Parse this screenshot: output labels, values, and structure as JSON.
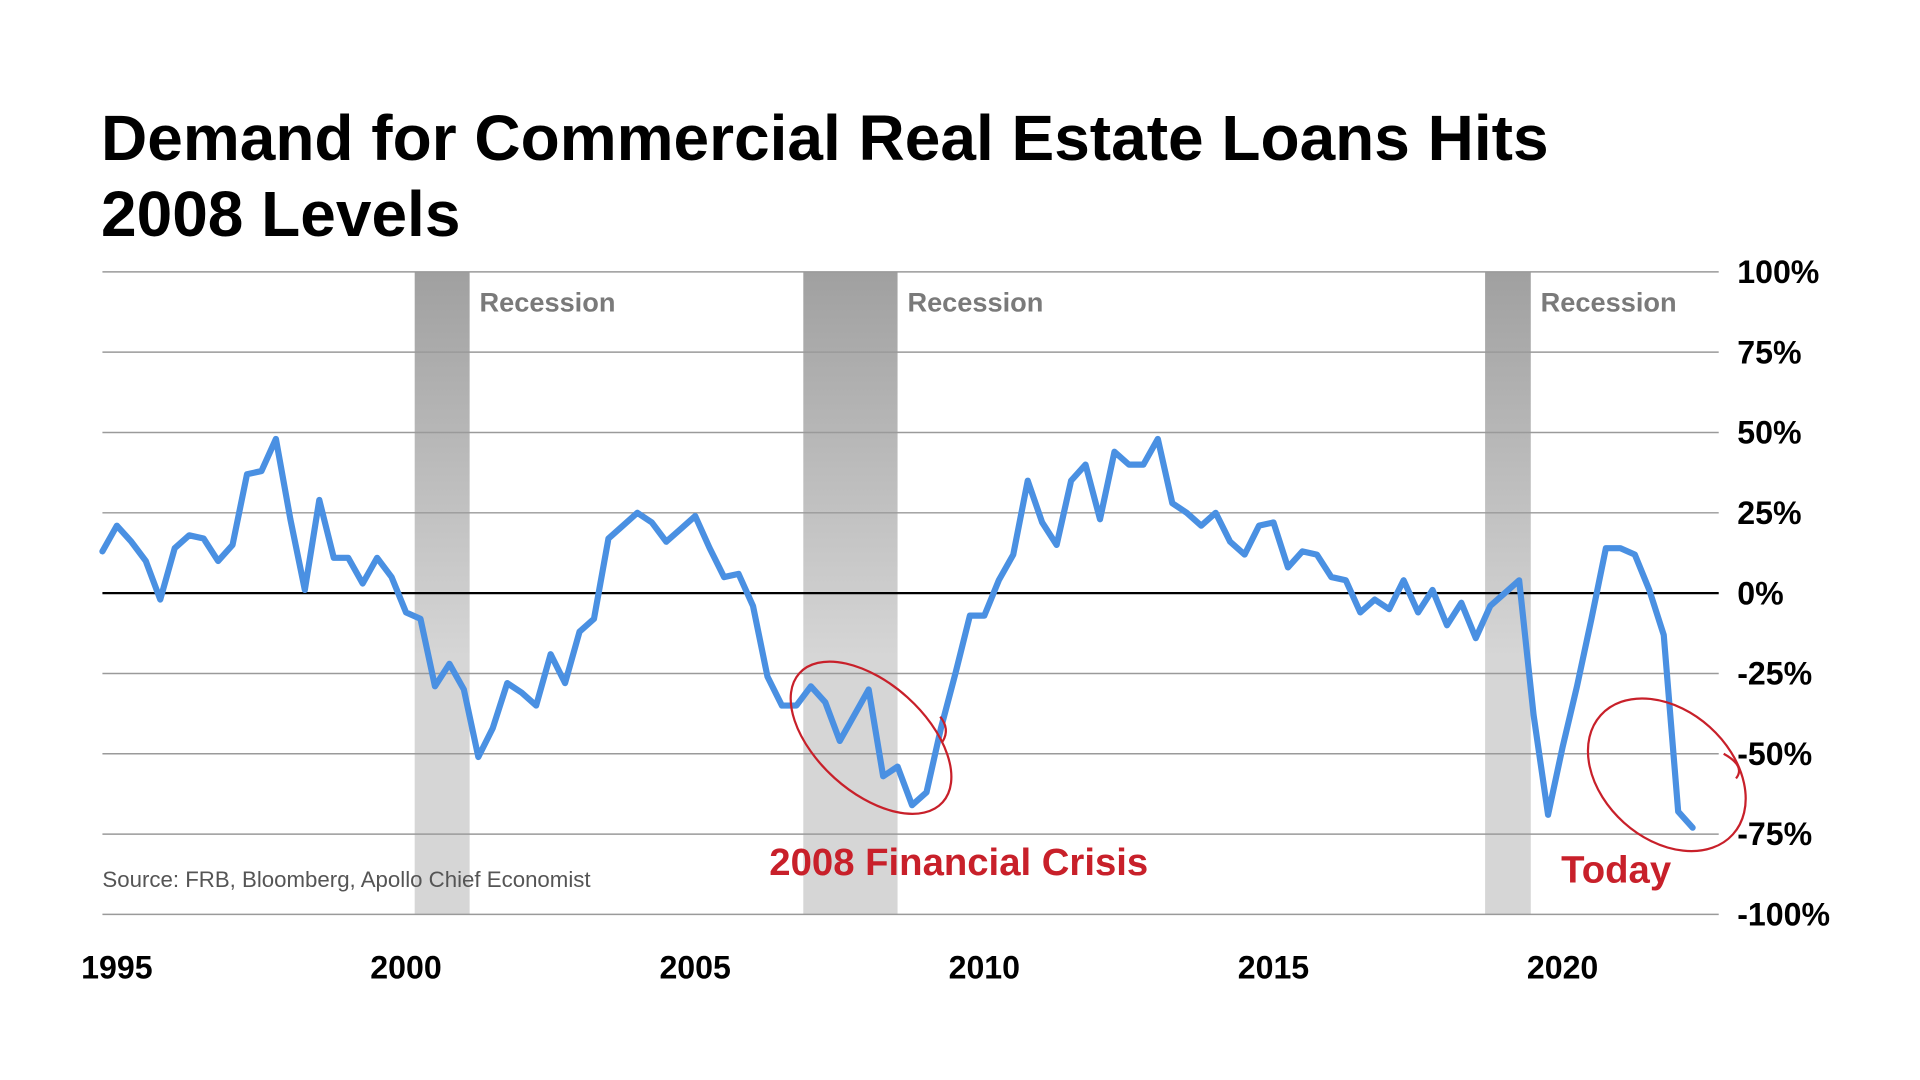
{
  "chart_data": {
    "type": "line",
    "title": "Demand for Commercial Real Estate Loans Hits 2008 Levels",
    "source": "Source: FRB, Bloomberg, Apollo Chief Economist",
    "annotations": [
      "2008 Financial Crisis",
      "Today"
    ],
    "color": "#4a90e2",
    "x": [
      1994.75,
      1995,
      1995.25,
      1995.5,
      1995.75,
      1996,
      1996.25,
      1996.5,
      1996.75,
      1997,
      1997.25,
      1997.5,
      1997.75,
      1998,
      1998.25,
      1998.5,
      1998.75,
      1999,
      1999.25,
      1999.5,
      1999.75,
      2000,
      2000.25,
      2000.5,
      2000.75,
      2001,
      2001.25,
      2001.5,
      2001.75,
      2002,
      2002.25,
      2002.5,
      2002.75,
      2003,
      2003.25,
      2003.5,
      2003.75,
      2004,
      2004.25,
      2004.5,
      2004.75,
      2005,
      2005.25,
      2005.5,
      2005.75,
      2006,
      2006.25,
      2006.5,
      2006.75,
      2007,
      2007.25,
      2007.5,
      2007.75,
      2008,
      2008.25,
      2008.5,
      2008.75,
      2009,
      2009.25,
      2009.5,
      2009.75,
      2010,
      2010.25,
      2010.5,
      2010.75,
      2011,
      2011.25,
      2011.5,
      2011.75,
      2012,
      2012.25,
      2012.5,
      2012.75,
      2013,
      2013.25,
      2013.5,
      2013.75,
      2014,
      2014.25,
      2014.5,
      2014.75,
      2015,
      2015.25,
      2015.5,
      2015.75,
      2016,
      2016.25,
      2016.5,
      2016.75,
      2017,
      2017.25,
      2017.5,
      2017.75,
      2018,
      2018.25,
      2018.5,
      2018.75,
      2019,
      2019.25,
      2019.5,
      2019.75,
      2020,
      2020.25,
      2020.5,
      2020.75,
      2021,
      2021.25,
      2021.5,
      2021.75,
      2022,
      2022.25
    ],
    "values": [
      13,
      21,
      16,
      10,
      -2,
      14,
      18,
      17,
      10,
      15,
      37,
      38,
      48,
      23,
      1,
      29,
      11,
      11,
      3,
      11,
      5,
      -6,
      -8,
      -29,
      -22,
      -30,
      -51,
      -42,
      -28,
      -31,
      -35,
      -19,
      -28,
      -12,
      -8,
      17,
      21,
      25,
      22,
      16,
      20,
      24,
      14,
      5,
      6,
      -4,
      -26,
      -35,
      -35,
      -29,
      -34,
      -46,
      -38,
      -30,
      -57,
      -54,
      -66,
      -62,
      -42,
      -25,
      -7,
      -7,
      4,
      12,
      35,
      22,
      15,
      35,
      40,
      23,
      44,
      40,
      40,
      48,
      28,
      25,
      21,
      25,
      16,
      12,
      21,
      22,
      8,
      13,
      12,
      5,
      4,
      -6,
      -2,
      -5,
      4,
      -6,
      1,
      -10,
      -3,
      -14,
      -4,
      0,
      4,
      -38,
      -69,
      -48,
      -29,
      -8,
      14,
      14,
      12,
      1,
      -13,
      -68,
      -73
    ],
    "shaded_ranges": [
      {
        "label": "Recession",
        "start": 2000.15,
        "end": 2001.1
      },
      {
        "label": "Recession",
        "start": 2006.87,
        "end": 2008.5
      },
      {
        "label": "Recession",
        "start": 2018.66,
        "end": 2019.45
      }
    ],
    "xlim": [
      1994.75,
      2022.7
    ],
    "xticks": [
      1995,
      2000,
      2005,
      2010,
      2015,
      2020
    ],
    "ylim": [
      -100,
      100
    ],
    "yticks": [
      {
        "value": -100,
        "label": "-100%"
      },
      {
        "value": -75,
        "label": "-75%"
      },
      {
        "value": -50,
        "label": "-50%"
      },
      {
        "value": -25,
        "label": "-25%"
      },
      {
        "value": 0,
        "label": "0%"
      },
      {
        "value": 25,
        "label": "25%"
      },
      {
        "value": 50,
        "label": "50%"
      },
      {
        "value": 75,
        "label": "75%"
      },
      {
        "value": 100,
        "label": "100%"
      }
    ],
    "grid": true
  }
}
